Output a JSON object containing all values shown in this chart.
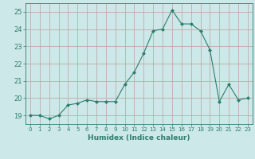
{
  "x": [
    0,
    1,
    2,
    3,
    4,
    5,
    6,
    7,
    8,
    9,
    10,
    11,
    12,
    13,
    14,
    15,
    16,
    17,
    18,
    19,
    20,
    21,
    22,
    23
  ],
  "y": [
    19.0,
    19.0,
    18.8,
    19.0,
    19.6,
    19.7,
    19.9,
    19.8,
    19.8,
    19.8,
    20.8,
    21.5,
    22.6,
    23.9,
    24.0,
    25.1,
    24.3,
    24.3,
    23.9,
    22.8,
    19.8,
    20.8,
    19.9,
    20.0
  ],
  "xlim": [
    -0.5,
    23.5
  ],
  "ylim": [
    18.5,
    25.5
  ],
  "yticks": [
    19,
    20,
    21,
    22,
    23,
    24,
    25
  ],
  "xticks": [
    0,
    1,
    2,
    3,
    4,
    5,
    6,
    7,
    8,
    9,
    10,
    11,
    12,
    13,
    14,
    15,
    16,
    17,
    18,
    19,
    20,
    21,
    22,
    23
  ],
  "xlabel": "Humidex (Indice chaleur)",
  "line_color": "#2e7d6e",
  "marker": "D",
  "marker_size": 2.0,
  "bg_color": "#cce8e8",
  "grid_color": "#c0a0a0",
  "tick_color": "#2e7d6e"
}
